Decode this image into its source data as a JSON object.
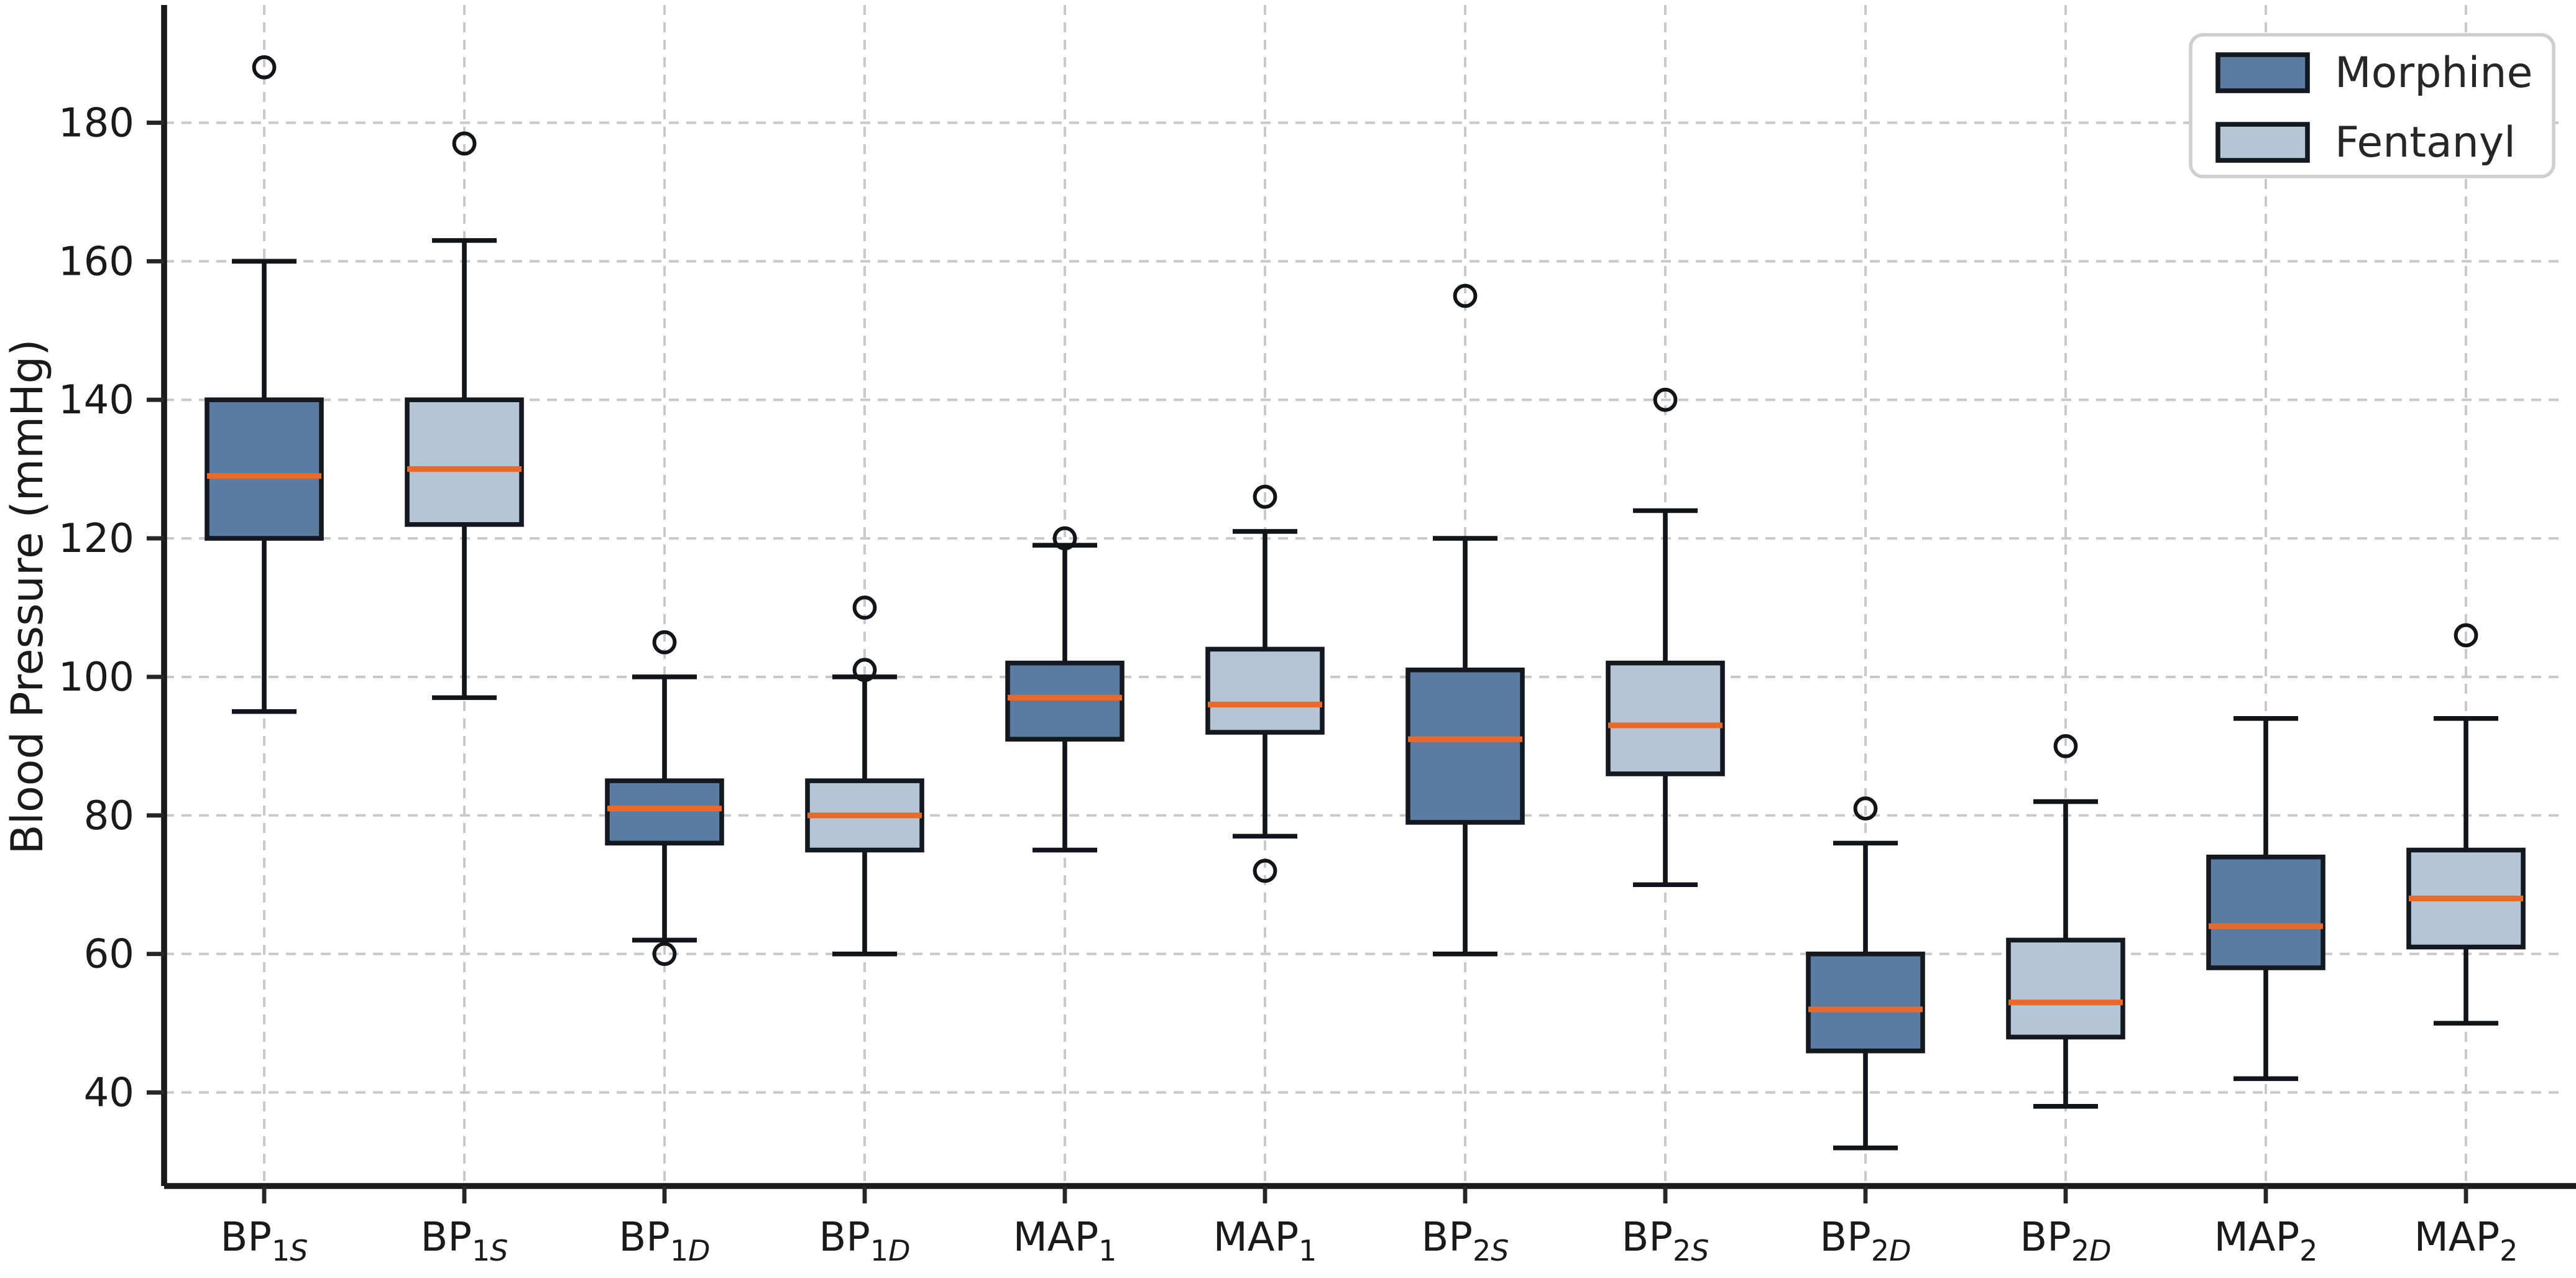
{
  "y_axis": {
    "label": "Blood Pressure (mmHg)",
    "ticks": [
      40,
      60,
      80,
      100,
      120,
      140,
      160,
      180
    ]
  },
  "legend": {
    "entries": [
      {
        "label": "Morphine",
        "color": "#5A7CA2"
      },
      {
        "label": "Fentanyl",
        "color": "#B4C6D5"
      }
    ]
  },
  "style": {
    "morphine_fill": "#5A7CA2",
    "fentanyl_fill": "#B4C6D5",
    "median_color": "#E8692B",
    "edge_color": "#14181F",
    "line_color": "#111418",
    "spine_color": "#1A1A1A",
    "tick_color": "#262626",
    "grid_color": "#C9C9C9",
    "background": "#FFFFFF"
  },
  "chart_data": {
    "type": "boxplot",
    "title": "",
    "xlabel": "",
    "ylabel": "Blood Pressure (mmHg)",
    "ylim": [
      26.5,
      197
    ],
    "yticks": [
      40,
      60,
      80,
      100,
      120,
      140,
      160,
      180
    ],
    "grid": "both axes, light gray dashed",
    "legend_position": "upper right",
    "series": [
      {
        "name": "Morphine",
        "color": "#5A7CA2"
      },
      {
        "name": "Fentanyl",
        "color": "#B4C6D5"
      }
    ],
    "categories": [
      "BP_1S",
      "BP_1S",
      "BP_1D",
      "BP_1D",
      "MAP_1",
      "MAP_1",
      "BP_2S",
      "BP_2S",
      "BP_2D",
      "BP_2D",
      "MAP_2",
      "MAP_2"
    ],
    "x_tick_labels": [
      {
        "base": "BP",
        "sub_num": "1",
        "sub_letter": "S"
      },
      {
        "base": "BP",
        "sub_num": "1",
        "sub_letter": "S"
      },
      {
        "base": "BP",
        "sub_num": "1",
        "sub_letter": "D"
      },
      {
        "base": "BP",
        "sub_num": "1",
        "sub_letter": "D"
      },
      {
        "base": "MAP",
        "sub_num": "1",
        "sub_letter": ""
      },
      {
        "base": "MAP",
        "sub_num": "1",
        "sub_letter": ""
      },
      {
        "base": "BP",
        "sub_num": "2",
        "sub_letter": "S"
      },
      {
        "base": "BP",
        "sub_num": "2",
        "sub_letter": "S"
      },
      {
        "base": "BP",
        "sub_num": "2",
        "sub_letter": "D"
      },
      {
        "base": "BP",
        "sub_num": "2",
        "sub_letter": "D"
      },
      {
        "base": "MAP",
        "sub_num": "2",
        "sub_letter": ""
      },
      {
        "base": "MAP",
        "sub_num": "2",
        "sub_letter": ""
      }
    ],
    "boxes": [
      {
        "category": "BP_1S",
        "series": "Morphine",
        "whislo": 95,
        "q1": 120,
        "med": 129,
        "q3": 140,
        "whishi": 160,
        "fliers": [
          188
        ]
      },
      {
        "category": "BP_1S",
        "series": "Fentanyl",
        "whislo": 97,
        "q1": 122,
        "med": 130,
        "q3": 140,
        "whishi": 163,
        "fliers": [
          177
        ]
      },
      {
        "category": "BP_1D",
        "series": "Morphine",
        "whislo": 62,
        "q1": 76,
        "med": 81,
        "q3": 85,
        "whishi": 100,
        "fliers": [
          105,
          60
        ]
      },
      {
        "category": "BP_1D",
        "series": "Fentanyl",
        "whislo": 60,
        "q1": 75,
        "med": 80,
        "q3": 85,
        "whishi": 100,
        "fliers": [
          110,
          101
        ]
      },
      {
        "category": "MAP_1",
        "series": "Morphine",
        "whislo": 75,
        "q1": 91,
        "med": 97,
        "q3": 102,
        "whishi": 119,
        "fliers": [
          120
        ]
      },
      {
        "category": "MAP_1",
        "series": "Fentanyl",
        "whislo": 77,
        "q1": 92,
        "med": 96,
        "q3": 104,
        "whishi": 121,
        "fliers": [
          126,
          72
        ]
      },
      {
        "category": "BP_2S",
        "series": "Morphine",
        "whislo": 60,
        "q1": 79,
        "med": 91,
        "q3": 101,
        "whishi": 120,
        "fliers": [
          155
        ]
      },
      {
        "category": "BP_2S",
        "series": "Fentanyl",
        "whislo": 70,
        "q1": 86,
        "med": 93,
        "q3": 102,
        "whishi": 124,
        "fliers": [
          140
        ]
      },
      {
        "category": "BP_2D",
        "series": "Morphine",
        "whislo": 32,
        "q1": 46,
        "med": 52,
        "q3": 60,
        "whishi": 76,
        "fliers": [
          81
        ]
      },
      {
        "category": "BP_2D",
        "series": "Fentanyl",
        "whislo": 38,
        "q1": 48,
        "med": 53,
        "q3": 62,
        "whishi": 82,
        "fliers": [
          90
        ]
      },
      {
        "category": "MAP_2",
        "series": "Morphine",
        "whislo": 42,
        "q1": 58,
        "med": 64,
        "q3": 74,
        "whishi": 94,
        "fliers": []
      },
      {
        "category": "MAP_2",
        "series": "Fentanyl",
        "whislo": 50,
        "q1": 61,
        "med": 68,
        "q3": 75,
        "whishi": 94,
        "fliers": [
          106
        ]
      }
    ]
  }
}
